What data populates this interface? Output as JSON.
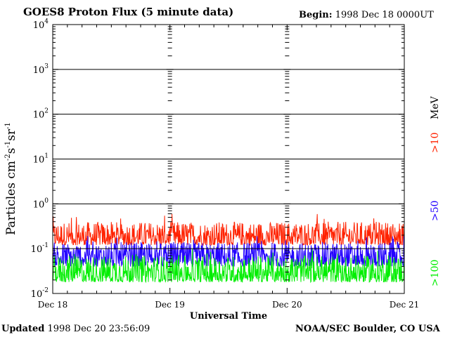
{
  "header": {
    "title": "GOES8 Proton Flux (5 minute data)",
    "begin_label": "Begin:",
    "begin_value": "1998 Dec 18 0000UT"
  },
  "footer": {
    "updated_label": "Updated",
    "updated_value": "1998 Dec 20 23:56:09",
    "credit": "NOAA/SEC Boulder, CO USA"
  },
  "colors": {
    "p10": "#ff2200",
    "p50": "#2200ff",
    "p100": "#00ee00",
    "axis": "#000000"
  },
  "chart_data": {
    "type": "line",
    "title": "GOES8 Proton Flux (5 minute data)",
    "xlabel": "Universal Time",
    "ylabel_base": "Particles cm",
    "y_scale": "log",
    "ylim": [
      0.01,
      10000
    ],
    "y_ticks": [
      {
        "value": 0.01,
        "base": "10",
        "exp": "-2"
      },
      {
        "value": 0.1,
        "base": "10",
        "exp": "-1"
      },
      {
        "value": 1,
        "base": "10",
        "exp": "0"
      },
      {
        "value": 10,
        "base": "10",
        "exp": "1"
      },
      {
        "value": 100,
        "base": "10",
        "exp": "2"
      },
      {
        "value": 1000,
        "base": "10",
        "exp": "3"
      },
      {
        "value": 10000,
        "base": "10",
        "exp": "4"
      }
    ],
    "x_ticks": [
      {
        "day": 0,
        "label": "Dec 18"
      },
      {
        "day": 1,
        "label": "Dec 19"
      },
      {
        "day": 2,
        "label": "Dec 20"
      },
      {
        "day": 3,
        "label": "Dec 21"
      }
    ],
    "xlim_days": [
      0,
      3
    ],
    "grid_y": true,
    "series": [
      {
        "name": ">10",
        "key": "p10",
        "low": 0.12,
        "high": 0.4,
        "peak": 0.6
      },
      {
        "name": ">50",
        "key": "p50",
        "low": 0.04,
        "high": 0.14,
        "peak": 0.2
      },
      {
        "name": ">100",
        "key": "p100",
        "low": 0.018,
        "high": 0.07,
        "peak": 0.1
      }
    ],
    "legend_unit": "MeV"
  }
}
